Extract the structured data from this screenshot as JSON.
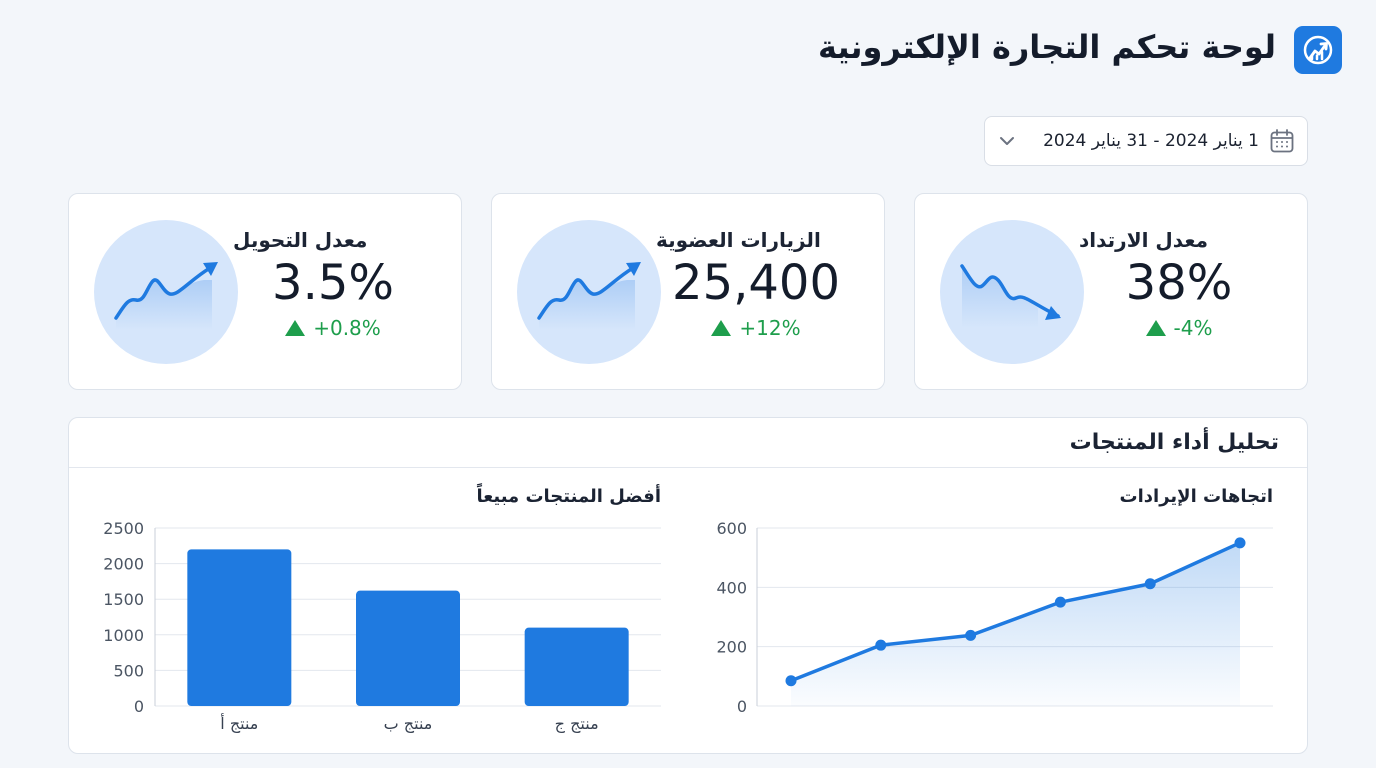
{
  "header": {
    "title": "لوحة تحكم التجارة الإلكترونية",
    "logo_icon": "trending-up-icon"
  },
  "date_range": {
    "value": "1 يناير 2024 - 31 يناير 2024",
    "icon": "calendar-icon",
    "dropdown_icon": "chevron-down-icon"
  },
  "kpis": [
    {
      "label": "معدل الارتداد",
      "value": "38%",
      "change": "-4%",
      "trend": "down",
      "icon": "trend-down-icon"
    },
    {
      "label": "الزيارات العضوية",
      "value": "25,400",
      "change": "+12%",
      "trend": "up",
      "icon": "trend-up-icon"
    },
    {
      "label": "معدل التحويل",
      "value": "3.5%",
      "change": "+0.8%",
      "trend": "up",
      "icon": "trend-up-icon"
    }
  ],
  "analysis": {
    "title": "تحليل أداء المنتجات"
  },
  "colors": {
    "accent": "#1f7ae0",
    "positive": "#1e9e4c",
    "kpi_circle": "#d6e6fb"
  },
  "chart_data": [
    {
      "type": "area",
      "title": "اتجاهات الإيرادات",
      "xlabel": "",
      "ylabel": "",
      "x": [
        1,
        2,
        3,
        4,
        5,
        6
      ],
      "series": [
        {
          "values": [
            85,
            205,
            238,
            350,
            412,
            550
          ]
        }
      ],
      "ylim": [
        0,
        600
      ],
      "yticks": [
        "0",
        "200",
        "400",
        "600"
      ],
      "grid": true
    },
    {
      "type": "bar",
      "title": "أفضل المنتجات مبيعاً",
      "xlabel": "",
      "ylabel": "",
      "categories": [
        "منتج أ",
        "منتج ب",
        "منتج ج"
      ],
      "values": [
        2200,
        1620,
        1100
      ],
      "ylim": [
        0,
        2500
      ],
      "yticks": [
        "0",
        "500",
        "1000",
        "1500",
        "2000",
        "2500"
      ],
      "grid": true
    }
  ]
}
